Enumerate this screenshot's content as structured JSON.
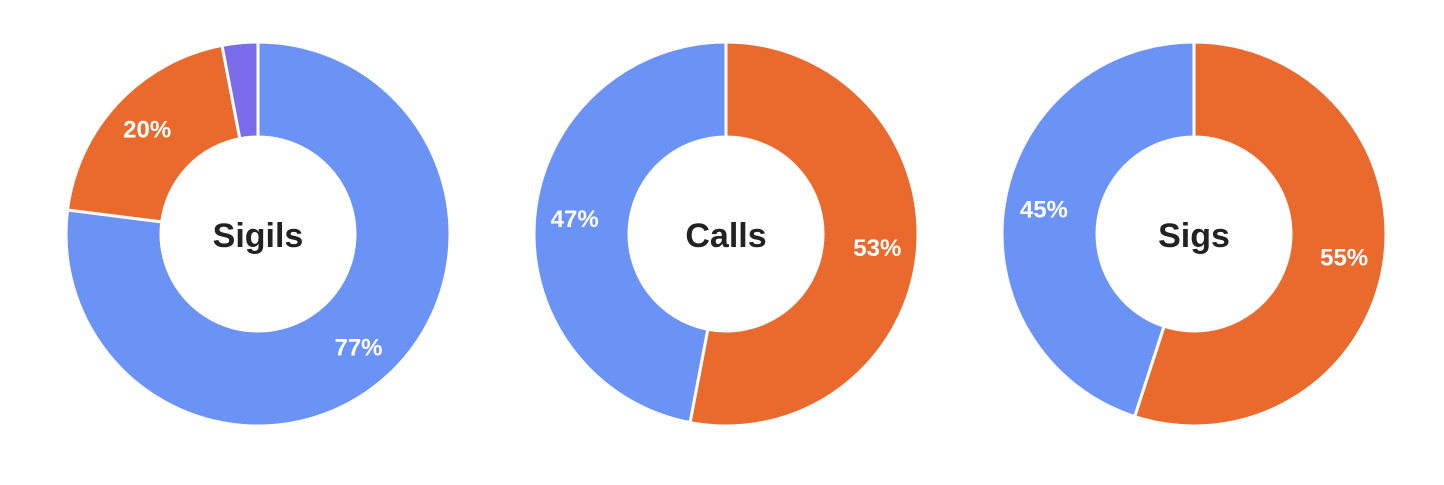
{
  "colors": {
    "blue": "#6B93F6",
    "orange": "#EA6A2E",
    "purple": "#7B6CEB",
    "background": "#ffffff",
    "separator": "#ffffff",
    "title": "#222222",
    "label": "#ffffff"
  },
  "chart_data": [
    {
      "type": "pie",
      "donut": true,
      "title": "Sigils",
      "slices": [
        {
          "value": 77,
          "label": "77%",
          "color": "#6B93F6"
        },
        {
          "value": 20,
          "label": "20%",
          "color": "#EA6A2E"
        },
        {
          "value": 3,
          "label": "",
          "color": "#7B6CEB"
        }
      ]
    },
    {
      "type": "pie",
      "donut": true,
      "title": "Calls",
      "slices": [
        {
          "value": 53,
          "label": "53%",
          "color": "#EA6A2E"
        },
        {
          "value": 47,
          "label": "47%",
          "color": "#6B93F6"
        }
      ]
    },
    {
      "type": "pie",
      "donut": true,
      "title": "Sigs",
      "slices": [
        {
          "value": 55,
          "label": "55%",
          "color": "#EA6A2E"
        },
        {
          "value": 45,
          "label": "45%",
          "color": "#6B93F6"
        }
      ]
    }
  ]
}
